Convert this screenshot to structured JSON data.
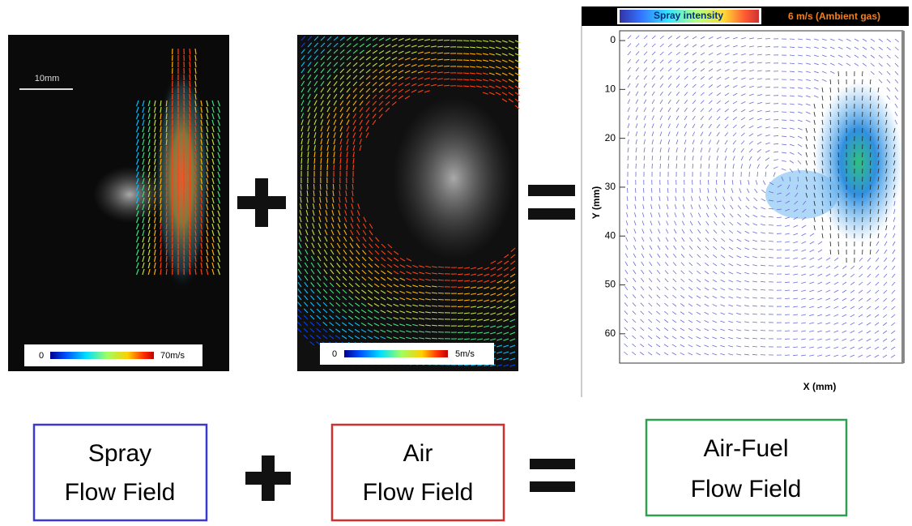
{
  "panels": {
    "spray": {
      "scale_label": "10mm",
      "colorbar_min": "0",
      "colorbar_max": "70m/s"
    },
    "air": {
      "colorbar_min": "0",
      "colorbar_max": "5m/s"
    },
    "combined": {
      "colorbar_label": "Spray intensity",
      "ambient_label": "6 m/s (Ambient gas)",
      "yticks": [
        0,
        10,
        20,
        30,
        40,
        50,
        60
      ],
      "ylim": [
        -2,
        66
      ],
      "ylabel": "Y (mm)",
      "xlabel": "X (mm)"
    }
  },
  "boxes": [
    {
      "lines": [
        "Spray",
        "Flow Field"
      ]
    },
    {
      "lines": [
        "Air",
        "Flow Field"
      ]
    },
    {
      "lines": [
        "Air-Fuel",
        "Flow Field"
      ]
    }
  ]
}
